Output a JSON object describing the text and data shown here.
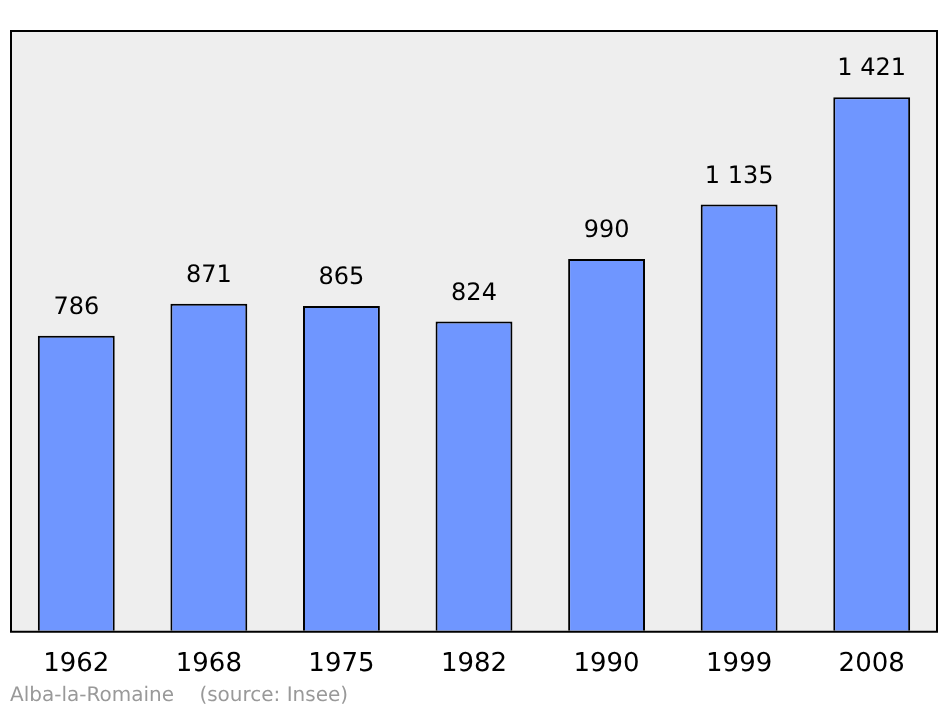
{
  "chart_data": {
    "type": "bar",
    "categories": [
      "1962",
      "1968",
      "1975",
      "1982",
      "1990",
      "1999",
      "2008"
    ],
    "values": [
      786,
      871,
      865,
      824,
      990,
      1135,
      1421
    ],
    "value_labels": [
      "786",
      "871",
      "865",
      "824",
      "990",
      "1 135",
      "1 421"
    ],
    "color": "#6f96ff",
    "annotations": [
      "Alba-la-Romaine    (source: Insee)"
    ],
    "grid": false,
    "legend": false
  }
}
